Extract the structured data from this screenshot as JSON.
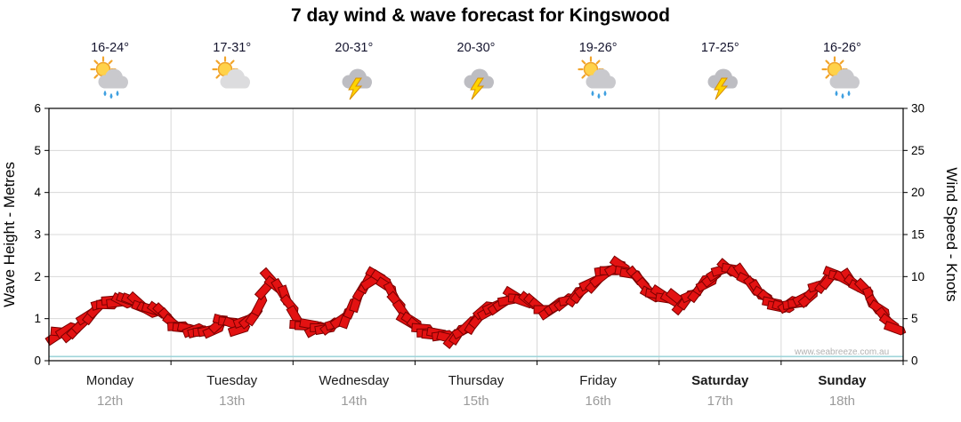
{
  "title": "7 day wind & wave forecast for Kingswood",
  "watermark": "www.seabreeze.com.au",
  "days": [
    {
      "name": "Monday",
      "date": "12th",
      "temp": "16-24°",
      "icon": "sun-cloud-rain-icon",
      "bold": false
    },
    {
      "name": "Tuesday",
      "date": "13th",
      "temp": "17-31°",
      "icon": "sun-cloud-icon",
      "bold": false
    },
    {
      "name": "Wednesday",
      "date": "14th",
      "temp": "20-31°",
      "icon": "storm-icon",
      "bold": false
    },
    {
      "name": "Thursday",
      "date": "15th",
      "temp": "20-30°",
      "icon": "storm-icon",
      "bold": false
    },
    {
      "name": "Friday",
      "date": "16th",
      "temp": "19-26°",
      "icon": "sun-cloud-rain-icon",
      "bold": false
    },
    {
      "name": "Saturday",
      "date": "17th",
      "temp": "17-25°",
      "icon": "storm-icon",
      "bold": true
    },
    {
      "name": "Sunday",
      "date": "18th",
      "temp": "16-26°",
      "icon": "sun-cloud-rain-icon",
      "bold": true
    }
  ],
  "chart_data": {
    "type": "line",
    "title": "7 day wind & wave forecast for Kingswood",
    "categories": [
      "Monday 12th",
      "Tuesday 13th",
      "Wednesday 14th",
      "Thursday 15th",
      "Friday 16th",
      "Saturday 17th",
      "Sunday 18th"
    ],
    "left_axis": {
      "label": "Wave Height - Metres",
      "min": 0,
      "max": 6,
      "ticks": [
        0,
        1,
        2,
        3,
        4,
        5,
        6
      ]
    },
    "right_axis": {
      "label": "Wind Speed - Knots",
      "min": 0,
      "max": 30,
      "ticks": [
        0,
        5,
        10,
        15,
        20,
        25,
        30
      ]
    },
    "grid": true,
    "legend": "none",
    "series": [
      {
        "name": "Wind Speed",
        "axis": "right",
        "unit": "knots",
        "color": "#e31212",
        "stroke": "#7a0000",
        "marker": "wind-arrow",
        "values_per_day": [
          [
            3.2,
            3.6,
            5.2,
            6.6,
            7.2,
            7.0,
            6.2,
            5.4
          ],
          [
            3.8,
            3.4,
            3.4,
            4.6,
            4.0,
            5.4,
            9.6,
            7.4
          ],
          [
            4.4,
            3.8,
            4.2,
            5.4,
            8.4,
            10.2,
            8.0,
            5.0
          ],
          [
            3.6,
            3.0,
            2.8,
            4.2,
            5.8,
            6.6,
            7.6,
            7.0
          ],
          [
            6.0,
            6.6,
            7.6,
            9.0,
            10.6,
            11.2,
            10.2,
            8.0
          ],
          [
            7.6,
            7.0,
            8.2,
            10.0,
            11.0,
            10.0,
            8.4,
            6.6
          ],
          [
            6.6,
            7.2,
            9.0,
            10.2,
            9.8,
            8.4,
            6.0,
            3.8
          ]
        ]
      },
      {
        "name": "Wave Height",
        "axis": "left",
        "unit": "metres",
        "color": "#9fd4da",
        "values": [
          0.1,
          0.1,
          0.1,
          0.1,
          0.1,
          0.1,
          0.1,
          0.1,
          0.1,
          0.1,
          0.1,
          0.1,
          0.1,
          0.1,
          0.1
        ]
      }
    ]
  },
  "colors": {
    "grid": "#d8d8d8",
    "axis": "#000000",
    "tick_label": "#000000",
    "wind_fill": "#e31212",
    "wind_stroke": "#7a0000",
    "wave_line": "#9fd4da"
  }
}
